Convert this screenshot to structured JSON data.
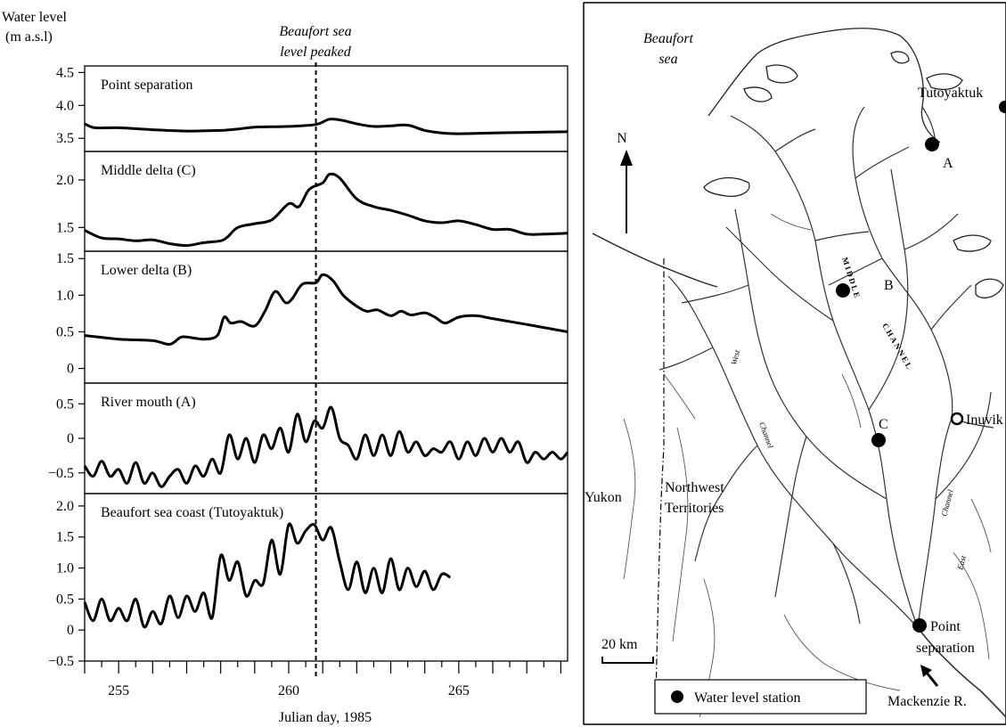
{
  "chart_data": {
    "type": "line",
    "xlabel": "Julian day, 1985",
    "ylabel_line1": "Water level",
    "ylabel_line2": "(m a.s.l)",
    "xlim": [
      254,
      268.2
    ],
    "x_ticks": [
      255,
      260,
      265
    ],
    "x_tick_labels": [
      "255",
      "260",
      "265"
    ],
    "annotation_line1": "Beaufort sea",
    "annotation_line2": "level peaked",
    "peak_day": 260.8,
    "panels": [
      {
        "title": "Point separation",
        "ylim": [
          3.3,
          4.6
        ],
        "y_ticks": [
          3.5,
          4.0,
          4.5
        ],
        "y_tick_labels": [
          "3.5",
          "4.0",
          "4.5"
        ],
        "series": [
          {
            "x": [
              254.0,
              254.3,
              255.0,
              256.0,
              257.0,
              258.0,
              258.5,
              259.0,
              260.0,
              260.8,
              261.2,
              261.6,
              262.0,
              262.5,
              263.0,
              263.5,
              264.0,
              264.5,
              265.0,
              266.0,
              267.0,
              268.2
            ],
            "y": [
              3.72,
              3.66,
              3.66,
              3.63,
              3.61,
              3.62,
              3.64,
              3.67,
              3.68,
              3.71,
              3.79,
              3.77,
              3.72,
              3.68,
              3.69,
              3.7,
              3.62,
              3.58,
              3.57,
              3.58,
              3.59,
              3.6
            ]
          }
        ]
      },
      {
        "title": "Middle delta (C)",
        "ylim": [
          1.25,
          2.3
        ],
        "y_ticks": [
          1.5,
          2.0
        ],
        "y_tick_labels": [
          "1.5",
          "2.0"
        ],
        "series": [
          {
            "x": [
              254.0,
              254.5,
              255.0,
              255.5,
              256.0,
              256.5,
              257.0,
              257.5,
              258.0,
              258.2,
              258.5,
              259.0,
              259.5,
              260.0,
              260.3,
              260.6,
              261.0,
              261.2,
              261.5,
              262.0,
              262.5,
              263.0,
              263.5,
              264.0,
              264.5,
              265.0,
              265.5,
              266.0,
              266.5,
              267.0,
              267.5,
              268.2
            ],
            "y": [
              1.47,
              1.39,
              1.38,
              1.36,
              1.37,
              1.33,
              1.31,
              1.34,
              1.36,
              1.4,
              1.5,
              1.54,
              1.58,
              1.75,
              1.72,
              1.9,
              1.97,
              2.06,
              2.02,
              1.8,
              1.72,
              1.68,
              1.63,
              1.57,
              1.55,
              1.57,
              1.53,
              1.48,
              1.48,
              1.43,
              1.43,
              1.44
            ]
          }
        ]
      },
      {
        "title": "Lower delta (B)",
        "ylim": [
          -0.2,
          1.6
        ],
        "y_ticks": [
          0,
          0.5,
          1.0,
          1.5
        ],
        "y_tick_labels": [
          "0",
          "0.5",
          "1.0",
          "1.5"
        ],
        "series": [
          {
            "x": [
              254.0,
              255.0,
              256.0,
              256.5,
              256.8,
              257.0,
              257.5,
              257.9,
              258.1,
              258.3,
              258.6,
              259.0,
              259.3,
              259.6,
              259.9,
              260.1,
              260.4,
              260.8,
              261.0,
              261.3,
              261.6,
              262.0,
              262.3,
              262.6,
              263.0,
              263.3,
              263.6,
              264.0,
              264.3,
              264.6,
              265.0,
              265.5,
              266.0,
              267.0,
              268.2
            ],
            "y": [
              0.45,
              0.4,
              0.38,
              0.33,
              0.42,
              0.43,
              0.4,
              0.45,
              0.7,
              0.62,
              0.64,
              0.58,
              0.78,
              1.05,
              0.9,
              0.95,
              1.15,
              1.17,
              1.28,
              1.2,
              1.0,
              0.85,
              0.78,
              0.8,
              0.72,
              0.78,
              0.73,
              0.76,
              0.7,
              0.62,
              0.7,
              0.72,
              0.68,
              0.6,
              0.5
            ]
          }
        ]
      },
      {
        "title": "River mouth (A)",
        "ylim": [
          -0.8,
          0.8
        ],
        "y_ticks": [
          -0.5,
          0,
          0.5
        ],
        "y_tick_labels": [
          "−0.5",
          "0",
          "0.5"
        ],
        "series": [
          {
            "x": [
              254.0,
              254.25,
              254.5,
              254.75,
              255.0,
              255.25,
              255.5,
              255.75,
              256.0,
              256.25,
              256.5,
              256.75,
              257.0,
              257.25,
              257.5,
              257.75,
              258.0,
              258.25,
              258.5,
              258.75,
              259.0,
              259.25,
              259.5,
              259.75,
              260.0,
              260.25,
              260.5,
              260.75,
              261.0,
              261.25,
              261.5,
              261.75,
              262.0,
              262.25,
              262.5,
              262.75,
              263.0,
              263.25,
              263.5,
              263.75,
              264.0,
              264.25,
              264.5,
              264.75,
              265.0,
              265.25,
              265.5,
              265.75,
              266.0,
              266.25,
              266.5,
              266.75,
              267.0,
              267.25,
              267.5,
              267.75,
              268.0,
              268.2
            ],
            "y": [
              -0.4,
              -0.55,
              -0.33,
              -0.55,
              -0.45,
              -0.65,
              -0.35,
              -0.65,
              -0.5,
              -0.7,
              -0.55,
              -0.45,
              -0.65,
              -0.4,
              -0.55,
              -0.3,
              -0.5,
              0.05,
              -0.3,
              0.0,
              -0.35,
              0.05,
              -0.15,
              0.15,
              -0.2,
              0.35,
              -0.05,
              0.25,
              0.15,
              0.45,
              0.0,
              -0.1,
              -0.3,
              0.05,
              -0.25,
              0.05,
              -0.25,
              0.1,
              -0.2,
              -0.05,
              -0.25,
              -0.15,
              -0.2,
              -0.05,
              -0.3,
              -0.05,
              -0.25,
              0.0,
              -0.2,
              0.0,
              -0.2,
              -0.05,
              -0.35,
              -0.2,
              -0.3,
              -0.2,
              -0.3,
              -0.2
            ]
          }
        ]
      },
      {
        "title": "Beaufort sea coast (Tutoyaktuk)",
        "ylim": [
          -0.5,
          2.2
        ],
        "y_ticks": [
          -0.5,
          0,
          0.5,
          1.0,
          1.5,
          2.0
        ],
        "y_tick_labels": [
          "−0.5",
          "0",
          "0.5",
          "1.0",
          "1.5",
          "2.0"
        ],
        "series": [
          {
            "x": [
              254.0,
              254.25,
              254.5,
              254.75,
              255.0,
              255.25,
              255.5,
              255.75,
              256.0,
              256.25,
              256.5,
              256.75,
              257.0,
              257.25,
              257.5,
              257.75,
              258.0,
              258.25,
              258.5,
              258.75,
              259.0,
              259.25,
              259.5,
              259.75,
              260.0,
              260.25,
              260.5,
              260.75,
              261.0,
              261.25,
              261.5,
              261.75,
              262.0,
              262.25,
              262.5,
              262.75,
              263.0,
              263.25,
              263.5,
              263.75,
              264.0,
              264.25,
              264.5,
              264.75
            ],
            "y": [
              0.45,
              0.15,
              0.5,
              0.15,
              0.35,
              0.15,
              0.5,
              0.05,
              0.3,
              0.1,
              0.55,
              0.2,
              0.55,
              0.3,
              0.6,
              0.2,
              1.2,
              0.8,
              1.1,
              0.55,
              0.8,
              0.75,
              1.45,
              0.9,
              1.7,
              1.4,
              1.6,
              1.7,
              1.45,
              1.65,
              1.1,
              0.65,
              1.1,
              0.6,
              1.0,
              0.6,
              1.15,
              0.65,
              1.0,
              0.7,
              0.95,
              0.65,
              0.9,
              0.85
            ]
          }
        ]
      }
    ]
  },
  "map": {
    "sea_label_line1": "Beaufort",
    "sea_label_line2": "sea",
    "north_label": "N",
    "stations": [
      {
        "name": "Tutoyaktuk",
        "label": "A"
      },
      {
        "name": "B",
        "label": "B"
      },
      {
        "name": "Middle",
        "label": ""
      },
      {
        "name": "C",
        "label": "C"
      },
      {
        "name": "Point separation",
        "label": "Point separation"
      }
    ],
    "label_tutoyaktuk": "Tutoyaktuk",
    "label_a": "A",
    "label_b": "B",
    "label_c": "C",
    "label_inuvik": "Inuvik",
    "label_yukon": "Yukon",
    "label_nwt_line1": "Northwest",
    "label_nwt_line2": "Territories",
    "label_point_line1": "Point",
    "label_point_line2": "separation",
    "label_mackenzie": "Mackenzie R.",
    "scale_label": "20 km",
    "legend_label": "Water level station",
    "channel_middle": "MIDDLE",
    "channel_channel": "CHANNEL",
    "channel_west": "West",
    "channel_channel2": "Channel",
    "channel_east": "East",
    "channel_channel3": "Channel"
  }
}
